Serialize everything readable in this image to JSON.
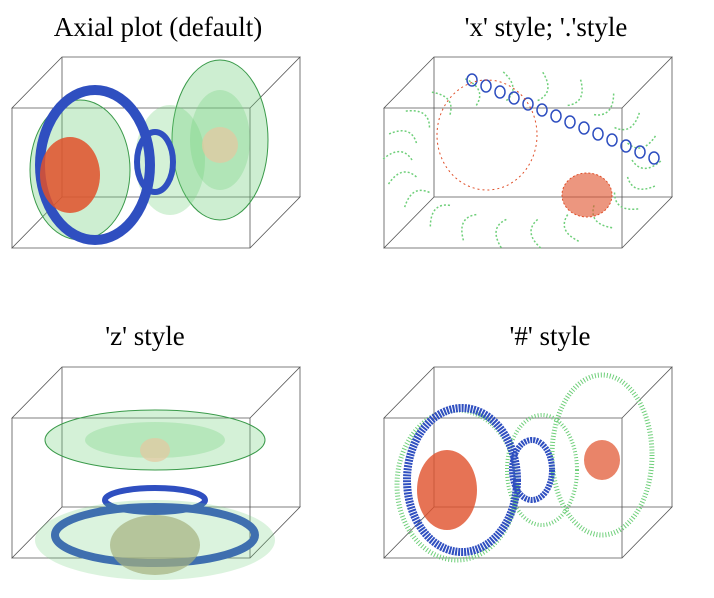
{
  "panels": [
    {
      "title": "Axial plot (default)"
    },
    {
      "title": "'x' style; '.'style"
    },
    {
      "title": "'z' style"
    },
    {
      "title": "'#' style"
    }
  ]
}
